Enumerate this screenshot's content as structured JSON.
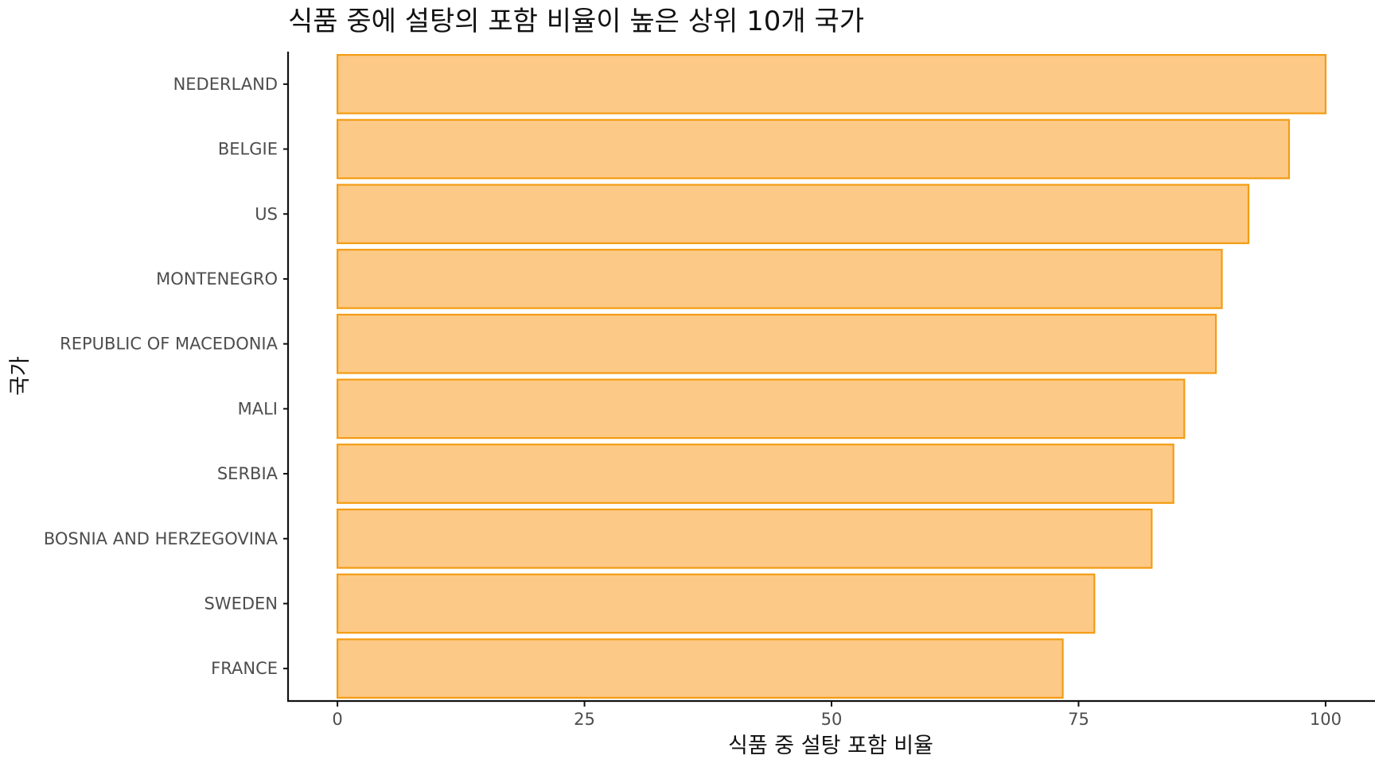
{
  "chart_data": {
    "type": "bar",
    "orientation": "horizontal",
    "title": "식품 중에 설탕의 포함 비율이 높은 상위 10개 국가",
    "xlabel": "식품 중 설탕 포함 비율",
    "ylabel": "국가",
    "categories": [
      "NEDERLAND",
      "BELGIE",
      "US",
      "MONTENEGRO",
      "REPUBLIC OF MACEDONIA",
      "MALI",
      "SERBIA",
      "BOSNIA AND HERZEGOVINA",
      "SWEDEN",
      "FRANCE"
    ],
    "values": [
      100,
      96.3,
      92.2,
      89.5,
      88.9,
      85.7,
      84.6,
      82.4,
      76.6,
      73.4
    ],
    "xlim": [
      -5,
      105
    ],
    "xticks": [
      0,
      25,
      50,
      75,
      100
    ],
    "grid": false,
    "legend": "none",
    "colors": {
      "fill": "#FDC986",
      "stroke": "#F39C12"
    }
  }
}
